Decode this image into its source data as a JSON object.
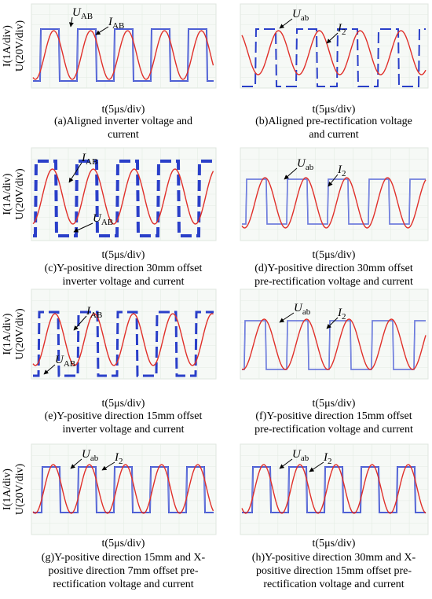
{
  "x_label": "t(5μs/div)",
  "y_labels": [
    "I(1A/div)",
    "U(20V/div)"
  ],
  "panels": [
    {
      "caption": [
        "(a)Aligned inverter voltage and",
        "current"
      ],
      "annotations": [
        {
          "symbol": "U",
          "subscript": "AB"
        },
        {
          "symbol": "I",
          "subscript": "AB"
        }
      ]
    },
    {
      "caption": [
        "(b)Aligned pre-rectification voltage",
        "and current"
      ],
      "annotations": [
        {
          "symbol": "U",
          "subscript": "ab"
        },
        {
          "symbol": "I",
          "subscript": "2"
        }
      ]
    },
    {
      "caption": [
        "(c)Y-positive direction 30mm offset",
        "inverter voltage and current"
      ],
      "annotations": [
        {
          "symbol": "I",
          "subscript": "AB"
        },
        {
          "symbol": "U",
          "subscript": "AB"
        }
      ]
    },
    {
      "caption": [
        "(d)Y-positive direction 30mm offset",
        "pre-rectification voltage and current"
      ],
      "annotations": [
        {
          "symbol": "U",
          "subscript": "ab"
        },
        {
          "symbol": "I",
          "subscript": "2"
        }
      ]
    },
    {
      "caption": [
        "(e)Y-positive direction 15mm offset",
        "inverter voltage and current"
      ],
      "annotations": [
        {
          "symbol": "I",
          "subscript": "AB"
        },
        {
          "symbol": "U",
          "subscript": "AB"
        }
      ]
    },
    {
      "caption": [
        "(f)Y-positive direction 15mm offset",
        "pre-rectification voltage and current"
      ],
      "annotations": [
        {
          "symbol": "U",
          "subscript": "ab"
        },
        {
          "symbol": "I",
          "subscript": "2"
        }
      ]
    },
    {
      "caption": [
        "(g)Y-positive direction 15mm and X-",
        "positive direction 7mm offset pre-",
        "rectification voltage and current"
      ],
      "annotations": [
        {
          "symbol": "U",
          "subscript": "ab"
        },
        {
          "symbol": "I",
          "subscript": "2"
        }
      ]
    },
    {
      "caption": [
        "(h)Y-positive direction 30mm and X-",
        "positive direction 15mm offset pre-",
        "rectification voltage and current"
      ],
      "annotations": [
        {
          "symbol": "U",
          "subscript": "ab"
        },
        {
          "symbol": "I",
          "subscript": "2"
        }
      ]
    }
  ]
}
